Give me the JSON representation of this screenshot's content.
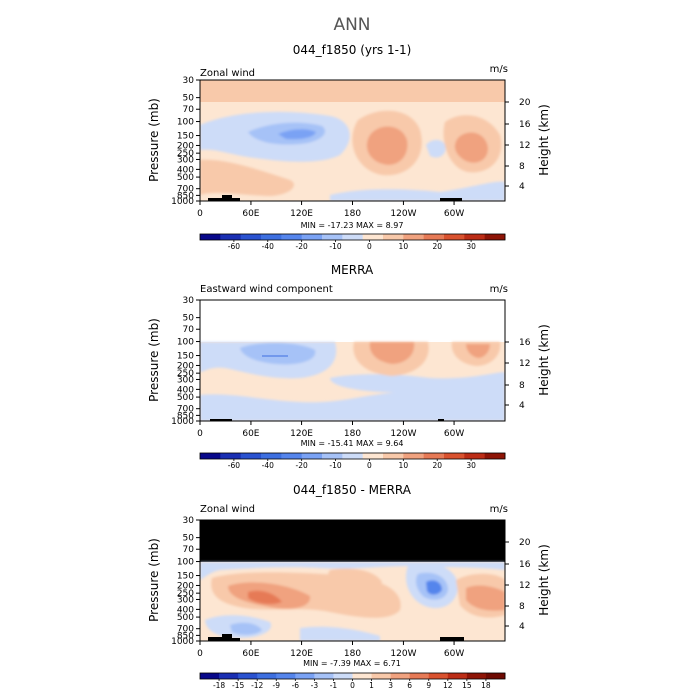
{
  "page_title": "ANN",
  "chart_data": [
    {
      "type": "heatmap",
      "title": "044_f1850 (yrs 1-1)",
      "subtitle_left": "Zonal wind",
      "units": "m/s",
      "xlabel": "",
      "ylabel": "Pressure (mb)",
      "ylabel_right": "Height (km)",
      "x_ticks": [
        "0",
        "60E",
        "120E",
        "180",
        "120W",
        "60W"
      ],
      "y_ticks": [
        "30",
        "50",
        "70",
        "100",
        "150",
        "200",
        "250",
        "300",
        "400",
        "500",
        "700",
        "850",
        "1000"
      ],
      "y_ticks_right": [
        "20",
        "16",
        "12",
        "8",
        "4"
      ],
      "stats": "MIN = -17.23   MAX =   8.97",
      "min": -17.23,
      "max": 8.97,
      "colorbar_labels": [
        "-60",
        "-40",
        "-20",
        "-10",
        "0",
        "10",
        "20",
        "30"
      ],
      "colorbar_colors": [
        "#08088a",
        "#1a2fb3",
        "#2a52d0",
        "#3d6fe0",
        "#5585ec",
        "#7aa2f4",
        "#a6c2f7",
        "#cddcf8",
        "#fde6d2",
        "#f8c9aa",
        "#f0a27f",
        "#e67a56",
        "#d9522f",
        "#bc2d16",
        "#8e1406"
      ]
    },
    {
      "type": "heatmap",
      "title": "MERRA",
      "subtitle_left": "Eastward wind component",
      "units": "m/s",
      "xlabel": "",
      "ylabel": "Pressure (mb)",
      "ylabel_right": "Height (km)",
      "x_ticks": [
        "0",
        "60E",
        "120E",
        "180",
        "120W",
        "60W"
      ],
      "y_ticks": [
        "30",
        "50",
        "70",
        "100",
        "150",
        "200",
        "250",
        "300",
        "400",
        "500",
        "700",
        "850",
        "1000"
      ],
      "y_ticks_right": [
        "16",
        "12",
        "8",
        "4"
      ],
      "stats": "MIN = -15.41   MAX =   9.64",
      "min": -15.41,
      "max": 9.64,
      "colorbar_labels": [
        "-60",
        "-40",
        "-20",
        "-10",
        "0",
        "10",
        "20",
        "30"
      ],
      "colorbar_colors": [
        "#08088a",
        "#1a2fb3",
        "#2a52d0",
        "#3d6fe0",
        "#5585ec",
        "#7aa2f4",
        "#a6c2f7",
        "#cddcf8",
        "#fde6d2",
        "#f8c9aa",
        "#f0a27f",
        "#e67a56",
        "#d9522f",
        "#bc2d16",
        "#8e1406"
      ]
    },
    {
      "type": "heatmap",
      "title": "044_f1850 - MERRA",
      "subtitle_left": "Zonal wind",
      "units": "m/s",
      "xlabel": "",
      "ylabel": "Pressure (mb)",
      "ylabel_right": "Height (km)",
      "x_ticks": [
        "0",
        "60E",
        "120E",
        "180",
        "120W",
        "60W"
      ],
      "y_ticks": [
        "30",
        "50",
        "70",
        "100",
        "150",
        "200",
        "250",
        "300",
        "400",
        "500",
        "700",
        "850",
        "1000"
      ],
      "y_ticks_right": [
        "20",
        "16",
        "12",
        "8",
        "4"
      ],
      "stats": "MIN = -7.39   MAX =   6.71",
      "min": -7.39,
      "max": 6.71,
      "colorbar_labels": [
        "-18",
        "-15",
        "-12",
        "-9",
        "-6",
        "-3",
        "-1",
        "0",
        "1",
        "3",
        "6",
        "9",
        "12",
        "15",
        "18"
      ],
      "colorbar_colors": [
        "#08088a",
        "#1a2fb3",
        "#2a52d0",
        "#3d6fe0",
        "#5585ec",
        "#7aa2f4",
        "#a6c2f7",
        "#cddcf8",
        "#fde6d2",
        "#f8c9aa",
        "#f0a27f",
        "#e67a56",
        "#d9522f",
        "#bc2d16",
        "#8e1406",
        "#6e0a02"
      ]
    }
  ]
}
